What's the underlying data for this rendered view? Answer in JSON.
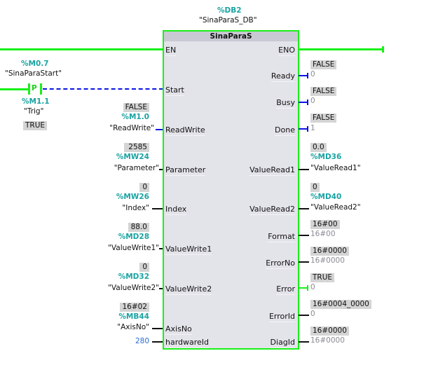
{
  "instance": {
    "address": "%DB2",
    "name": "\"SinaParaS_DB\""
  },
  "block": {
    "title": "SinaParaS",
    "inputs": [
      "EN",
      "Start",
      "ReadWrite",
      "Parameter",
      "Index",
      "ValueWrite1",
      "ValueWrite2",
      "AxisNo",
      "hardwareId"
    ],
    "outputs": [
      "ENO",
      "Ready",
      "Busy",
      "Done",
      "ValueRead1",
      "ValueRead2",
      "Format",
      "ErrorNo",
      "Error",
      "ErrorId",
      "DiagId"
    ]
  },
  "contact": {
    "type": "P",
    "address": "%M0.7",
    "symbol": "\"SinaParaStart\"",
    "edge_address": "%M1.1",
    "edge_symbol": "\"Trig\"",
    "edge_value": "TRUE"
  },
  "in_params": {
    "readwrite": {
      "value": "FALSE",
      "address": "%M1.0",
      "symbol": "\"ReadWrite\""
    },
    "parameter": {
      "value": "2585",
      "address": "%MW24",
      "symbol": "\"Parameter\""
    },
    "index": {
      "value": "0",
      "address": "%MW26",
      "symbol": "\"Index\""
    },
    "valuewrite1": {
      "value": "88.0",
      "address": "%MD28",
      "symbol": "\"ValueWrite1\""
    },
    "valuewrite2": {
      "value": "0",
      "address": "%MD32",
      "symbol": "\"ValueWrite2\""
    },
    "axisno": {
      "value": "16#02",
      "address": "%MB44",
      "symbol": "\"AxisNo\""
    },
    "hardwareid": {
      "value": "280"
    }
  },
  "out_params": {
    "ready": {
      "value": "FALSE",
      "const": "0"
    },
    "busy": {
      "value": "FALSE",
      "const": "0"
    },
    "done": {
      "value": "FALSE",
      "const": "1"
    },
    "valueread1": {
      "value": "0.0",
      "address": "%MD36",
      "symbol": "\"ValueRead1\""
    },
    "valueread2": {
      "value": "0",
      "address": "%MD40",
      "symbol": "\"ValueRead2\""
    },
    "format": {
      "value": "16#00",
      "const": "16#00"
    },
    "errorno": {
      "value": "16#0000",
      "const": "16#0000"
    },
    "error": {
      "value": "TRUE",
      "const": "0"
    },
    "errorid": {
      "value": "16#0004_0000",
      "const": "0"
    },
    "diagid": {
      "value": "16#0000",
      "const": "16#0000"
    }
  },
  "colors": {
    "powered": "#19f019",
    "unpowered": "#0a14e6",
    "address": "#1aa3a3"
  }
}
